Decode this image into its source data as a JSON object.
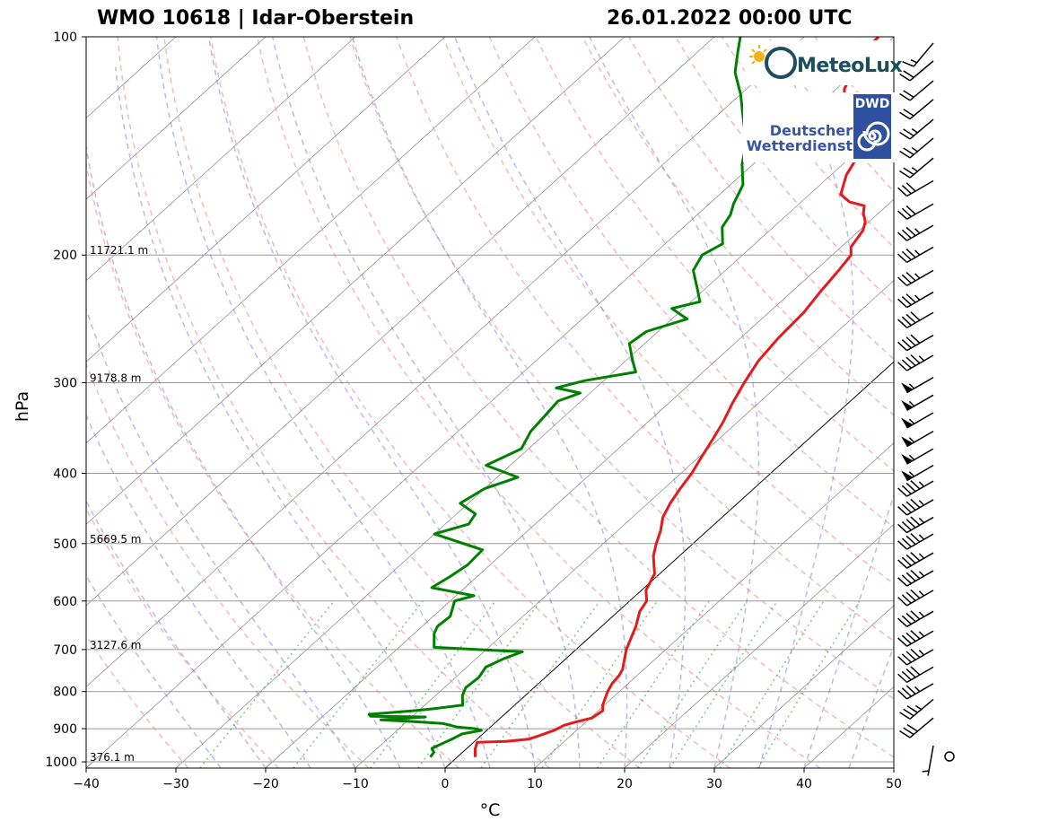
{
  "header": {
    "station": "WMO 10618 | Idar-Oberstein",
    "datetime": "26.01.2022 00:00 UTC"
  },
  "logos": {
    "meteolux": "MeteoLux",
    "dwd_badge": "DWD",
    "dwd_line1": "Deutscher",
    "dwd_line2": "Wetterdienst"
  },
  "chart_data": {
    "type": "line",
    "subtype": "skew-T log-p diagram",
    "xlabel": "°C",
    "ylabel": "hPa",
    "xlim": [
      -40,
      50
    ],
    "ylim": [
      1020,
      100
    ],
    "y_scale": "log",
    "x_ticks": [
      -40,
      -30,
      -20,
      -10,
      0,
      10,
      20,
      30,
      40,
      50
    ],
    "x_tick_labels": [
      "−40",
      "−30",
      "−20",
      "−10",
      "0",
      "10",
      "20",
      "30",
      "40",
      "50"
    ],
    "y_ticks": [
      100,
      200,
      300,
      400,
      500,
      600,
      700,
      800,
      900,
      1000
    ],
    "y_tick_labels": [
      "100",
      "200",
      "300",
      "400",
      "500",
      "600",
      "700",
      "800",
      "900",
      "1000"
    ],
    "height_labels": [
      {
        "p": 200,
        "text": "11721.1 m"
      },
      {
        "p": 300,
        "text": "9178.8 m"
      },
      {
        "p": 500,
        "text": "5669.5 m"
      },
      {
        "p": 700,
        "text": "3127.6 m"
      },
      {
        "p": 1000,
        "text": "376.1 m"
      }
    ],
    "colors": {
      "temperature": "#e41a1c",
      "dewpoint": "#008000",
      "dry_adiabat": "#f08080",
      "moist_adiabat": "#6666dd",
      "mixing_ratio": "#22aa22",
      "isotherm": "#666666",
      "isobar": "#999999"
    },
    "series": [
      {
        "name": "temperature",
        "points": [
          [
            985,
            2
          ],
          [
            960,
            1
          ],
          [
            940,
            0.4
          ],
          [
            937,
            3.5
          ],
          [
            930,
            5.8
          ],
          [
            920,
            6.5
          ],
          [
            905,
            7.5
          ],
          [
            890,
            8
          ],
          [
            880,
            9
          ],
          [
            870,
            10.2
          ],
          [
            850,
            10.5
          ],
          [
            835,
            9.8
          ],
          [
            800,
            8.7
          ],
          [
            780,
            8.2
          ],
          [
            760,
            8
          ],
          [
            745,
            7.6
          ],
          [
            700,
            5.6
          ],
          [
            680,
            4.9
          ],
          [
            650,
            3.8
          ],
          [
            620,
            2.4
          ],
          [
            600,
            1.9
          ],
          [
            580,
            0.5
          ],
          [
            550,
            -0.6
          ],
          [
            520,
            -2.9
          ],
          [
            500,
            -4.1
          ],
          [
            480,
            -5.2
          ],
          [
            460,
            -6.6
          ],
          [
            440,
            -7.5
          ],
          [
            420,
            -8.2
          ],
          [
            400,
            -8.8
          ],
          [
            380,
            -9.7
          ],
          [
            360,
            -10.6
          ],
          [
            340,
            -11.6
          ],
          [
            320,
            -12.9
          ],
          [
            300,
            -14.1
          ],
          [
            280,
            -15.2
          ],
          [
            260,
            -15.8
          ],
          [
            240,
            -16.1
          ],
          [
            225,
            -16.8
          ],
          [
            210,
            -17.4
          ],
          [
            200,
            -17.9
          ],
          [
            195,
            -18.9
          ],
          [
            185,
            -19.6
          ],
          [
            180,
            -20.4
          ],
          [
            175,
            -21.7
          ],
          [
            171,
            -22.5
          ],
          [
            169,
            -24.6
          ],
          [
            165,
            -26.5
          ],
          [
            160,
            -27.4
          ],
          [
            155,
            -28.3
          ],
          [
            148,
            -29.1
          ],
          [
            142,
            -31.1
          ],
          [
            135,
            -32.2
          ],
          [
            130,
            -34.4
          ],
          [
            125,
            -35.8
          ],
          [
            122,
            -37.8
          ],
          [
            118,
            -39.1
          ],
          [
            112,
            -40.2
          ],
          [
            108,
            -41
          ],
          [
            105,
            -41.6
          ],
          [
            100,
            -41.7
          ]
        ]
      },
      {
        "name": "dewpoint",
        "points": [
          [
            985,
            -3
          ],
          [
            970,
            -3.2
          ],
          [
            958,
            -3.9
          ],
          [
            940,
            -3.2
          ],
          [
            930,
            -2.8
          ],
          [
            915,
            -2.3
          ],
          [
            905,
            -0.6
          ],
          [
            900,
            -1.5
          ],
          [
            895,
            -3.8
          ],
          [
            885,
            -5.8
          ],
          [
            880,
            -9.1
          ],
          [
            875,
            -13.1
          ],
          [
            867,
            -8.5
          ],
          [
            865,
            -14.7
          ],
          [
            860,
            -15.1
          ],
          [
            850,
            -10.5
          ],
          [
            845,
            -8.6
          ],
          [
            835,
            -5.8
          ],
          [
            810,
            -7
          ],
          [
            790,
            -7.6
          ],
          [
            765,
            -7.4
          ],
          [
            740,
            -7.9
          ],
          [
            720,
            -6.9
          ],
          [
            705,
            -5.7
          ],
          [
            695,
            -16.1
          ],
          [
            665,
            -17.8
          ],
          [
            650,
            -18.3
          ],
          [
            630,
            -18.1
          ],
          [
            600,
            -19.5
          ],
          [
            590,
            -18
          ],
          [
            575,
            -23.7
          ],
          [
            555,
            -23
          ],
          [
            535,
            -22.5
          ],
          [
            510,
            -22.7
          ],
          [
            485,
            -30
          ],
          [
            470,
            -27.4
          ],
          [
            455,
            -27.9
          ],
          [
            440,
            -30.9
          ],
          [
            420,
            -30
          ],
          [
            405,
            -27.7
          ],
          [
            390,
            -32.7
          ],
          [
            370,
            -30.8
          ],
          [
            350,
            -31.9
          ],
          [
            335,
            -32.2
          ],
          [
            318,
            -32.6
          ],
          [
            310,
            -31.1
          ],
          [
            305,
            -34.4
          ],
          [
            298,
            -32.1
          ],
          [
            290,
            -27.5
          ],
          [
            280,
            -29.2
          ],
          [
            265,
            -31.7
          ],
          [
            255,
            -31.3
          ],
          [
            245,
            -28.3
          ],
          [
            237,
            -31.3
          ],
          [
            232,
            -29
          ],
          [
            222,
            -31
          ],
          [
            210,
            -33.6
          ],
          [
            200,
            -34.5
          ],
          [
            193,
            -33.6
          ],
          [
            183,
            -35.7
          ],
          [
            176,
            -36.3
          ],
          [
            170,
            -37.3
          ],
          [
            160,
            -38.6
          ],
          [
            150,
            -41.2
          ],
          [
            140,
            -43.4
          ],
          [
            130,
            -46.6
          ],
          [
            120,
            -50
          ],
          [
            112,
            -53.3
          ],
          [
            105,
            -55.5
          ],
          [
            100,
            -57.1
          ]
        ]
      }
    ],
    "wind_barbs": [
      {
        "p": 1000,
        "dir": 0,
        "speed": 0
      },
      {
        "p": 950,
        "dir": 190,
        "speed": 5
      },
      {
        "p": 870,
        "dir": 230,
        "speed": 30
      },
      {
        "p": 820,
        "dir": 230,
        "speed": 35
      },
      {
        "p": 780,
        "dir": 240,
        "speed": 35
      },
      {
        "p": 740,
        "dir": 240,
        "speed": 40
      },
      {
        "p": 700,
        "dir": 240,
        "speed": 45
      },
      {
        "p": 660,
        "dir": 240,
        "speed": 45
      },
      {
        "p": 620,
        "dir": 240,
        "speed": 45
      },
      {
        "p": 580,
        "dir": 240,
        "speed": 45
      },
      {
        "p": 545,
        "dir": 240,
        "speed": 45
      },
      {
        "p": 515,
        "dir": 240,
        "speed": 45
      },
      {
        "p": 485,
        "dir": 240,
        "speed": 45
      },
      {
        "p": 460,
        "dir": 240,
        "speed": 45
      },
      {
        "p": 435,
        "dir": 240,
        "speed": 45
      },
      {
        "p": 410,
        "dir": 240,
        "speed": 45
      },
      {
        "p": 390,
        "dir": 240,
        "speed": 55
      },
      {
        "p": 370,
        "dir": 240,
        "speed": 55
      },
      {
        "p": 350,
        "dir": 240,
        "speed": 55
      },
      {
        "p": 330,
        "dir": 240,
        "speed": 55
      },
      {
        "p": 312,
        "dir": 240,
        "speed": 55
      },
      {
        "p": 295,
        "dir": 240,
        "speed": 55
      },
      {
        "p": 275,
        "dir": 240,
        "speed": 45
      },
      {
        "p": 258,
        "dir": 240,
        "speed": 40
      },
      {
        "p": 240,
        "dir": 240,
        "speed": 40
      },
      {
        "p": 225,
        "dir": 240,
        "speed": 35
      },
      {
        "p": 210,
        "dir": 240,
        "speed": 35
      },
      {
        "p": 195,
        "dir": 240,
        "speed": 35
      },
      {
        "p": 182,
        "dir": 240,
        "speed": 35
      },
      {
        "p": 170,
        "dir": 240,
        "speed": 30
      },
      {
        "p": 158,
        "dir": 240,
        "speed": 30
      },
      {
        "p": 147,
        "dir": 230,
        "speed": 25
      },
      {
        "p": 138,
        "dir": 230,
        "speed": 25
      },
      {
        "p": 130,
        "dir": 230,
        "speed": 25
      },
      {
        "p": 122,
        "dir": 230,
        "speed": 20
      },
      {
        "p": 115,
        "dir": 230,
        "speed": 20
      },
      {
        "p": 108,
        "dir": 230,
        "speed": 20
      },
      {
        "p": 102,
        "dir": 220,
        "speed": 15
      }
    ]
  }
}
